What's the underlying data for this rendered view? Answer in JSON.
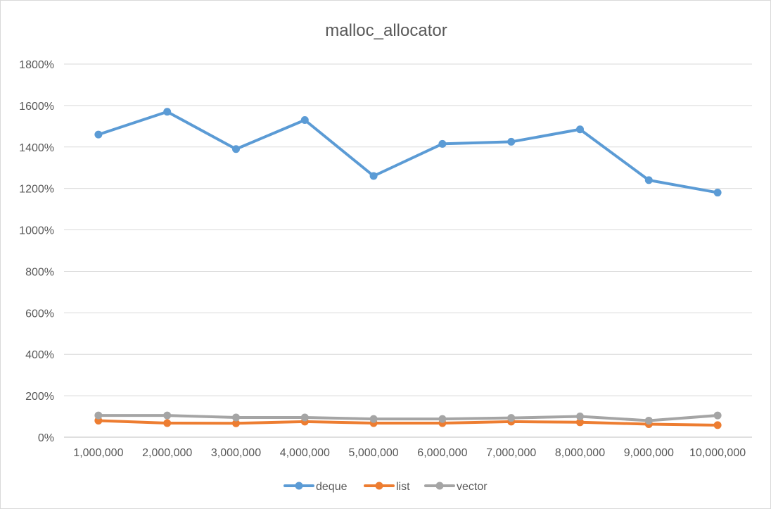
{
  "chart_data": {
    "type": "line",
    "title": "malloc_allocator",
    "xlabel": "",
    "ylabel": "",
    "categories": [
      "1,000,000",
      "2,000,000",
      "3,000,000",
      "4,000,000",
      "5,000,000",
      "6,000,000",
      "7,000,000",
      "8,000,000",
      "9,000,000",
      "10,000,000"
    ],
    "y_ticks": [
      "0%",
      "200%",
      "400%",
      "600%",
      "800%",
      "1000%",
      "1200%",
      "1400%",
      "1600%",
      "1800%"
    ],
    "ylim": [
      0,
      18
    ],
    "y_step": 2,
    "grid": true,
    "legend_position": "bottom",
    "series": [
      {
        "name": "deque",
        "color": "#5b9bd5",
        "values": [
          14.6,
          15.7,
          13.9,
          15.3,
          12.6,
          14.15,
          14.25,
          14.85,
          12.4,
          11.8
        ]
      },
      {
        "name": "list",
        "color": "#ed7d31",
        "values": [
          0.8,
          0.68,
          0.67,
          0.75,
          0.68,
          0.68,
          0.75,
          0.72,
          0.63,
          0.58
        ]
      },
      {
        "name": "vector",
        "color": "#a5a5a5",
        "values": [
          1.05,
          1.05,
          0.95,
          0.95,
          0.88,
          0.88,
          0.93,
          1.0,
          0.8,
          1.05
        ]
      }
    ]
  }
}
